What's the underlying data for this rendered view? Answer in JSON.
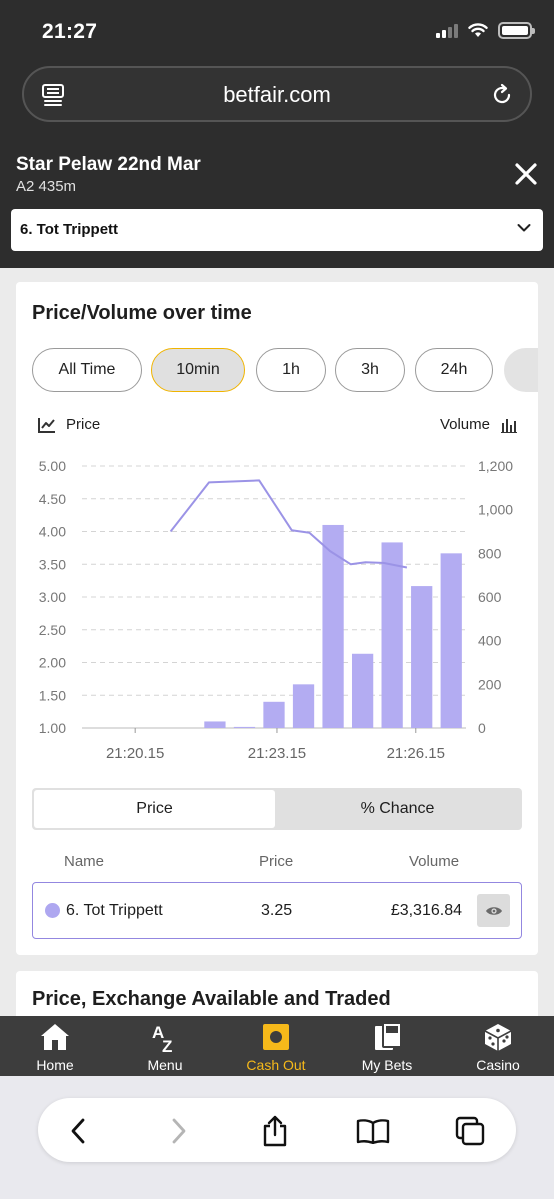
{
  "status_bar": {
    "time": "21:27"
  },
  "browser": {
    "url": "betfair.com"
  },
  "event": {
    "title": "Star Pelaw 22nd Mar",
    "subtitle": "A2 435m",
    "selected_runner": "6. Tot Trippett"
  },
  "price_volume": {
    "title": "Price/Volume over time",
    "ranges": [
      "All Time",
      "10min",
      "1h",
      "3h",
      "24h"
    ],
    "active_range": "10min",
    "legend_price": "Price",
    "legend_volume": "Volume"
  },
  "chart_data": {
    "type": "bar+line",
    "price_axis_ticks": [
      "5.00",
      "4.50",
      "4.00",
      "3.50",
      "3.00",
      "2.50",
      "2.00",
      "1.50",
      "1.00"
    ],
    "volume_axis_ticks": [
      "1,200",
      "1,000",
      "800",
      "600",
      "400",
      "200",
      "0"
    ],
    "x_tick_labels": [
      "21:20.15",
      "21:23.15",
      "21:26.15"
    ],
    "price_range": [
      1.0,
      5.0
    ],
    "volume_range": [
      0,
      1200
    ],
    "volume_bars": {
      "name": "Volume",
      "color": "#b3acf2",
      "values": [
        30,
        5,
        120,
        200,
        930,
        340,
        850,
        650,
        800
      ],
      "slots": [
        4,
        5,
        6,
        7,
        8,
        9,
        10,
        11,
        12
      ],
      "slot_count": 13
    },
    "price_line": {
      "name": "Price",
      "color": "#9b93e6",
      "values": [
        4.0,
        4.75,
        4.78,
        4.02,
        3.98,
        3.7,
        3.5,
        3.53,
        3.52,
        3.45
      ],
      "positions": [
        3.0,
        4.3,
        6.0,
        7.1,
        7.7,
        8.4,
        9.1,
        9.6,
        10.2,
        11.0
      ],
      "slot_count": 13
    },
    "grid": true,
    "grid_style": "dashed"
  },
  "toggle": {
    "price": "Price",
    "chance": "% Chance"
  },
  "table": {
    "headers": {
      "name": "Name",
      "price": "Price",
      "volume": "Volume"
    },
    "row": {
      "name": "6. Tot Trippett",
      "price": "3.25",
      "volume": "£3,316.84"
    }
  },
  "section2": {
    "title": "Price, Exchange Available and Traded"
  },
  "bottom_nav": [
    {
      "label": "Home",
      "icon": "home-icon"
    },
    {
      "label": "Menu",
      "icon": "az-icon"
    },
    {
      "label": "Cash Out",
      "icon": "cash-out-icon",
      "active": true
    },
    {
      "label": "My Bets",
      "icon": "my-bets-icon"
    },
    {
      "label": "Casino",
      "icon": "casino-dice-icon"
    }
  ],
  "colors": {
    "accent": "#f6b91a",
    "chart_purple": "#b3acf2",
    "header_bg": "#2d2d2d"
  }
}
